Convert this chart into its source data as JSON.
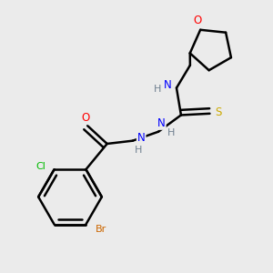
{
  "background_color": "#ebebeb",
  "atom_colors": {
    "C": "#000000",
    "H": "#708090",
    "N": "#0000ff",
    "O": "#ff0000",
    "S": "#ccaa00",
    "Cl": "#00bb00",
    "Br": "#cc6600"
  }
}
